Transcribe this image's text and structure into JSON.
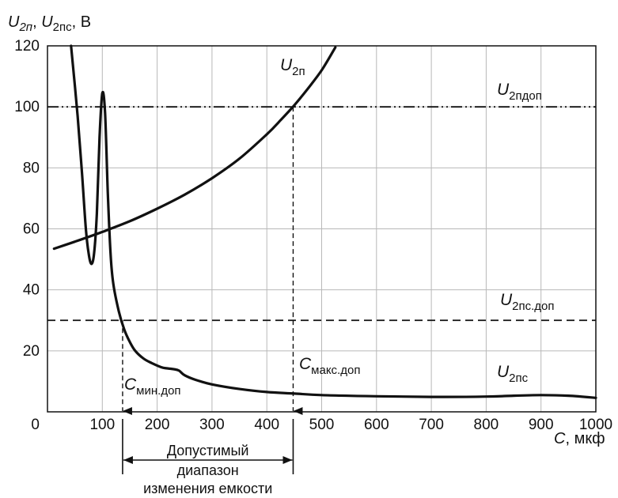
{
  "chart_data": {
    "type": "line",
    "title": "",
    "ylabel_parts": [
      "U",
      "2п",
      ", ",
      "U",
      "2пс",
      ", В"
    ],
    "xlabel_parts": [
      "C",
      ", мкф"
    ],
    "x_range": [
      0,
      1000
    ],
    "y_range": [
      0,
      120
    ],
    "x_ticks": [
      "100",
      "200",
      "300",
      "400",
      "500",
      "600",
      "700",
      "800",
      "900",
      "1000"
    ],
    "x_tick_values": [
      100,
      200,
      300,
      400,
      500,
      600,
      700,
      800,
      900,
      1000
    ],
    "y_ticks": [
      "0",
      "20",
      "40",
      "60",
      "80",
      "100",
      "120"
    ],
    "y_tick_values": [
      0,
      20,
      40,
      60,
      80,
      100,
      120
    ],
    "grid": true,
    "series": [
      {
        "label_main": "U",
        "label_sub": "2п",
        "style": "solid",
        "x": [
          12,
          50,
          100,
          150,
          200,
          250,
          300,
          350,
          400,
          425,
          450,
          475,
          500,
          525
        ],
        "y": [
          53.5,
          55.8,
          59,
          62.5,
          66.6,
          71.2,
          76.6,
          83,
          91,
          95.6,
          100.5,
          106,
          112,
          119.5
        ]
      },
      {
        "label_main": "U",
        "label_sub": "2пс",
        "style": "solid",
        "x": [
          43,
          55,
          63,
          70,
          75,
          80,
          85,
          90,
          95,
          100,
          105,
          110,
          115,
          120,
          130,
          140,
          150,
          160,
          175,
          190,
          210,
          230,
          240,
          250,
          270,
          300,
          350,
          400,
          450,
          500,
          600,
          700,
          800,
          850,
          900,
          950,
          1000
        ],
        "y": [
          120,
          97,
          78,
          60,
          52,
          48.5,
          52,
          65,
          90,
          104.5,
          98,
          72,
          52,
          42,
          33,
          27,
          23,
          20,
          17.5,
          16,
          14.5,
          14,
          13.5,
          12,
          10.5,
          9,
          7.5,
          6.5,
          6,
          5.5,
          5.1,
          4.9,
          5,
          5.3,
          5.5,
          5.3,
          4.6
        ]
      }
    ],
    "reference_lines": [
      {
        "label_main": "U",
        "label_sub": "2пдоп",
        "y": 100,
        "style": "dash-dot-dot"
      },
      {
        "label_main": "U",
        "label_sub": "2пс.доп",
        "y": 30,
        "style": "dashed"
      }
    ],
    "markers": [
      {
        "label_main": "C",
        "label_sub": "мин.доп",
        "x": 137
      },
      {
        "label_main": "C",
        "label_sub": "макс.доп",
        "x": 448
      }
    ],
    "range_text": [
      "Допустимый",
      "диапазон",
      "изменения емкости"
    ]
  }
}
